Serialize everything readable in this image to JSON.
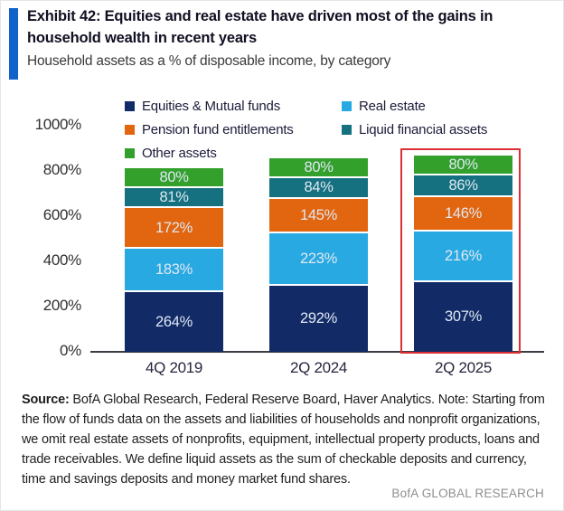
{
  "header": {
    "title_line1": "Exhibit 42: Equities and real estate have driven most of the gains in",
    "title_line2": "household wealth in recent years",
    "subtitle": "Household assets as a % of disposable income, by category",
    "accent_color": "#1262CB"
  },
  "chart_data": {
    "type": "bar",
    "stacked": true,
    "categories": [
      "4Q 2019",
      "2Q 2024",
      "2Q 2025"
    ],
    "series": [
      {
        "name": "Equities & Mutual funds",
        "color": "#122A66",
        "values": [
          264,
          292,
          307
        ]
      },
      {
        "name": "Real estate",
        "color": "#29A9E1",
        "values": [
          183,
          223,
          216
        ]
      },
      {
        "name": "Pension fund entitlements",
        "color": "#E2650F",
        "values": [
          172,
          145,
          146
        ]
      },
      {
        "name": "Liquid financial assets",
        "color": "#15707F",
        "values": [
          81,
          84,
          86
        ]
      },
      {
        "name": "Other assets",
        "color": "#33A02C",
        "values": [
          80,
          80,
          80
        ]
      }
    ],
    "totals": [
      780,
      824,
      835
    ],
    "value_suffix": "%",
    "yaxis": {
      "min": 0,
      "max": 1000,
      "step": 200,
      "tick_suffix": "%"
    },
    "tick_labels": [
      "0%",
      "200%",
      "400%",
      "600%",
      "800%",
      "1000%"
    ],
    "grid": false,
    "legend_position": "top",
    "highlight": {
      "category": "2Q 2025",
      "box_color": "#DC2F34"
    }
  },
  "footer": {
    "source_label": "Source:",
    "source_text": " BofA Global Research, Federal Reserve Board, Haver Analytics. Note: Starting from the flow of funds data on the assets and liabilities of households and nonprofit organizations, we omit real estate assets of nonprofits, equipment, intellectual property products, loans and trade receivables. We define liquid assets as the sum of checkable deposits and currency, time and savings deposits and money market fund shares.",
    "brand": "BofA GLOBAL RESEARCH"
  }
}
